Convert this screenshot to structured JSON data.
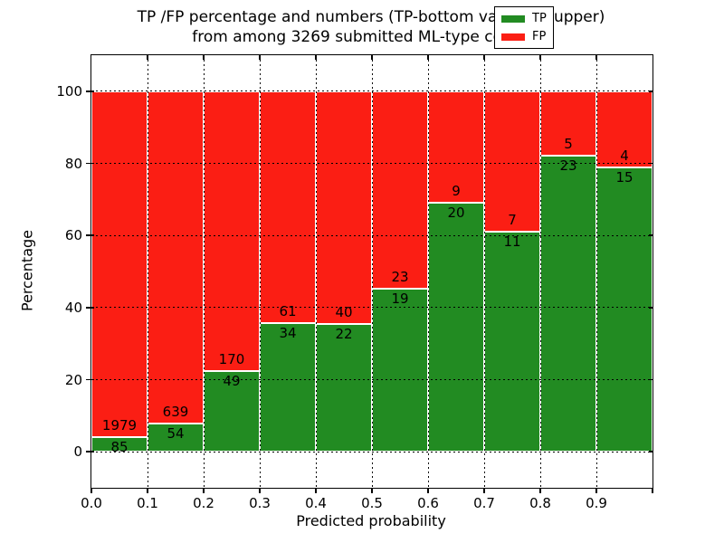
{
  "figure": {
    "title_line1": "TP /FP percentage and numbers (TP-bottom value, FP-upper)",
    "title_line2": "from among 3269 submitted ML-type contacts"
  },
  "chart_data": {
    "type": "bar",
    "subtype": "stacked-percentage",
    "title": "TP /FP percentage and numbers (TP-bottom value, FP-upper)\nfrom among 3269 submitted ML-type contacts",
    "xlabel": "Predicted probability",
    "ylabel": "Percentage",
    "total_contacts": 3269,
    "bin_width": 0.1,
    "categories": [
      "0.0–0.1",
      "0.1–0.2",
      "0.2–0.3",
      "0.3–0.4",
      "0.4–0.5",
      "0.5–0.6",
      "0.6–0.7",
      "0.7–0.8",
      "0.8–0.9",
      "0.9–1.0"
    ],
    "series": [
      {
        "name": "TP",
        "color": "#228b22",
        "values": [
          85,
          54,
          49,
          34,
          22,
          19,
          20,
          11,
          23,
          15
        ]
      },
      {
        "name": "FP",
        "color": "#fb1e14",
        "values": [
          1979,
          639,
          170,
          61,
          40,
          23,
          9,
          7,
          5,
          4
        ]
      }
    ],
    "tp_percent": [
      4.12,
      7.79,
      22.37,
      35.79,
      35.48,
      45.24,
      68.97,
      61.11,
      82.14,
      78.95
    ],
    "x_tick_labels": [
      "0.0",
      "0.1",
      "0.2",
      "0.3",
      "0.4",
      "0.5",
      "0.6",
      "0.7",
      "0.8",
      "0.9"
    ],
    "y_ticks": [
      0,
      20,
      40,
      60,
      80,
      100
    ],
    "xlim": [
      0.0,
      1.0
    ],
    "ylim": [
      -10,
      110
    ],
    "grid": "dotted, both axes, drawn over bars",
    "bar_edge_color": "#ffffff",
    "legend": {
      "position": "upper right",
      "entries": [
        {
          "label": "TP",
          "color": "#228b22"
        },
        {
          "label": "FP",
          "color": "#fb1e14"
        }
      ]
    }
  }
}
